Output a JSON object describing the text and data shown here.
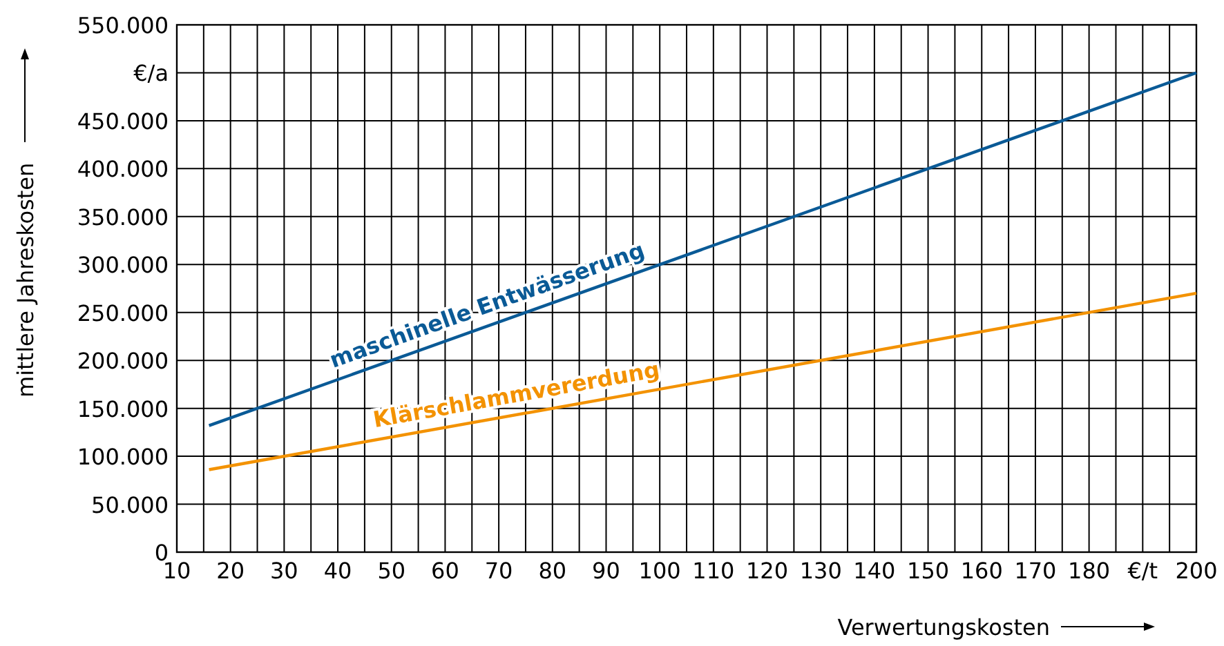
{
  "chart_data": {
    "type": "line",
    "xlabel": "Verwertungskosten",
    "ylabel": "mittlere Jahreskosten",
    "xlim": [
      10,
      200
    ],
    "ylim": [
      0,
      550000
    ],
    "xticks": [
      10,
      {
        "value": 15,
        "label": null
      },
      20,
      {
        "value": 25,
        "label": null
      },
      30,
      {
        "value": 35,
        "label": null
      },
      40,
      {
        "value": 45,
        "label": null
      },
      50,
      {
        "value": 55,
        "label": null
      },
      60,
      {
        "value": 65,
        "label": null
      },
      70,
      {
        "value": 75,
        "label": null
      },
      80,
      {
        "value": 85,
        "label": null
      },
      90,
      {
        "value": 95,
        "label": null
      },
      100,
      {
        "value": 105,
        "label": null
      },
      110,
      {
        "value": 115,
        "label": null
      },
      120,
      {
        "value": 125,
        "label": null
      },
      130,
      {
        "value": 135,
        "label": null
      },
      140,
      {
        "value": 145,
        "label": null
      },
      150,
      {
        "value": 155,
        "label": null
      },
      160,
      {
        "value": 165,
        "label": null
      },
      170,
      {
        "value": 175,
        "label": null
      },
      180,
      {
        "value": 185,
        "label": null
      },
      {
        "value": 190,
        "label": "€/t"
      },
      {
        "value": 195,
        "label": null
      },
      200
    ],
    "yticks": [
      {
        "value": 0,
        "label": "0"
      },
      {
        "value": 50000,
        "label": "50.000"
      },
      {
        "value": 100000,
        "label": "100.000"
      },
      {
        "value": 150000,
        "label": "150.000"
      },
      {
        "value": 200000,
        "label": "200.000"
      },
      {
        "value": 250000,
        "label": "250.000"
      },
      {
        "value": 300000,
        "label": "300.000"
      },
      {
        "value": 350000,
        "label": "350.000"
      },
      {
        "value": 400000,
        "label": "400.000"
      },
      {
        "value": 450000,
        "label": "450.000"
      },
      {
        "value": 500000,
        "label": "€/a"
      },
      {
        "value": 550000,
        "label": "550.000"
      }
    ],
    "x": [
      16,
      200
    ],
    "grid": true,
    "legend": false,
    "marker": "none",
    "line_style": "solid",
    "series": [
      {
        "name": "maschinelle Entwässerung",
        "color": "#0a5a96",
        "values": [
          132000,
          500000
        ]
      },
      {
        "name": "Klärschlammvererdung",
        "color": "#f39200",
        "values": [
          86000,
          270000
        ]
      }
    ]
  }
}
